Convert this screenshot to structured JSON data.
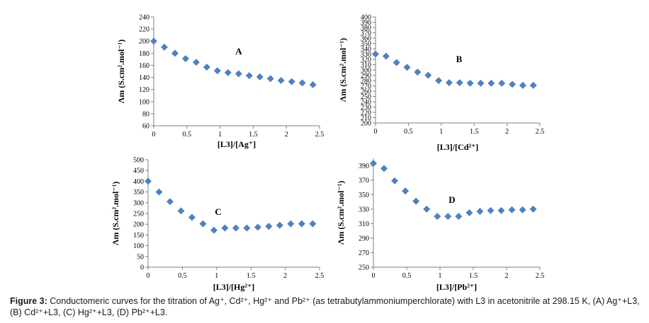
{
  "caption": {
    "figure_label": "Figure 3:",
    "text_line1": "Conductomeric curves for the titration of Ag⁺, Cd²⁺, Hg²⁺ and Pb²⁺ (as tetrabutylammoniumperchlorate) with L3 in acetonitrile at 298.15 K, (A) Ag⁺+L3,",
    "text_line2": "(B) Cd²⁺+L3,  (C) Hg²⁺+L3,  (D) Pb²⁺+L3."
  },
  "colors": {
    "marker": "#4F81BD",
    "axis": "#7f7f7f",
    "text": "#000000"
  },
  "chart_data": [
    {
      "id": "A",
      "type": "scatter",
      "panel_label": "A",
      "ylabel": "Λm (S.cm².mol⁻¹)",
      "xlabel": "[L3]/[Ag⁺]",
      "xlim": [
        0,
        2.5
      ],
      "ylim": [
        60,
        240
      ],
      "xticks": [
        0,
        0.5,
        1,
        1.5,
        2,
        2.5
      ],
      "xtick_labels": [
        "0",
        "0.5",
        "1",
        "1.5",
        "2",
        "2.5"
      ],
      "yticks": [
        60,
        80,
        100,
        120,
        140,
        160,
        180,
        200,
        220,
        240
      ],
      "x": [
        0,
        0.16,
        0.32,
        0.48,
        0.64,
        0.8,
        0.96,
        1.12,
        1.28,
        1.44,
        1.6,
        1.76,
        1.92,
        2.08,
        2.24,
        2.4
      ],
      "y": [
        200,
        190,
        180,
        171,
        165,
        157,
        151,
        148,
        146,
        143,
        141,
        138,
        135,
        133,
        131,
        128
      ]
    },
    {
      "id": "B",
      "type": "scatter",
      "panel_label": "B",
      "ylabel": "Λm (S.cm².mol⁻¹)",
      "xlabel": "[L3]/[Cd²⁺]",
      "xlim": [
        0,
        2.5
      ],
      "ylim": [
        200,
        400
      ],
      "xticks": [
        0,
        0.5,
        1,
        1.5,
        2,
        2.5
      ],
      "xtick_labels": [
        "0",
        "0.5",
        "1",
        "1.5",
        "2",
        "2.5"
      ],
      "yticks": [
        200,
        210,
        220,
        230,
        240,
        250,
        260,
        270,
        280,
        290,
        300,
        310,
        320,
        330,
        340,
        350,
        360,
        370,
        380,
        390,
        400
      ],
      "x": [
        0,
        0.16,
        0.32,
        0.48,
        0.64,
        0.8,
        0.96,
        1.12,
        1.28,
        1.44,
        1.6,
        1.76,
        1.92,
        2.08,
        2.24,
        2.4
      ],
      "y": [
        330,
        326,
        314,
        305,
        296,
        290,
        280,
        276,
        276,
        275,
        275,
        275,
        275,
        273,
        271,
        271
      ]
    },
    {
      "id": "C",
      "type": "scatter",
      "panel_label": "C",
      "ylabel": "Λm (S.cm².mol⁻¹)",
      "xlabel": "[L3]/[Hg²⁺]",
      "xlim": [
        0,
        2.5
      ],
      "ylim": [
        0,
        500
      ],
      "xticks": [
        0,
        0.5,
        1,
        1.5,
        2,
        2.5
      ],
      "xtick_labels": [
        "0",
        "0.5",
        "1",
        "1.5",
        "2",
        "2.5"
      ],
      "yticks": [
        0,
        50,
        100,
        150,
        200,
        250,
        300,
        350,
        400,
        450,
        500
      ],
      "x": [
        0,
        0.16,
        0.32,
        0.48,
        0.64,
        0.8,
        0.96,
        1.12,
        1.28,
        1.44,
        1.6,
        1.76,
        1.92,
        2.08,
        2.24,
        2.4
      ],
      "y": [
        400,
        350,
        305,
        262,
        232,
        202,
        172,
        182,
        182,
        182,
        186,
        190,
        195,
        202,
        202,
        202
      ]
    },
    {
      "id": "D",
      "type": "scatter",
      "panel_label": "D",
      "ylabel": "Λm (S.cm².mol⁻¹)",
      "xlabel": "[L3]/[Pb²⁺]",
      "xlim": [
        0,
        2.5
      ],
      "ylim": [
        250,
        400
      ],
      "xticks": [
        0,
        0.5,
        1,
        1.5,
        2,
        2.5
      ],
      "xtick_labels": [
        "0",
        "0.5",
        "1",
        "1.5",
        "2",
        "2.5"
      ],
      "yticks": [
        250,
        270,
        290,
        310,
        330,
        350,
        370,
        390
      ],
      "x": [
        0,
        0.16,
        0.32,
        0.48,
        0.64,
        0.8,
        0.96,
        1.12,
        1.28,
        1.44,
        1.6,
        1.76,
        1.92,
        2.08,
        2.24,
        2.4
      ],
      "y": [
        393,
        386,
        369,
        355,
        341,
        330,
        320,
        320,
        320,
        325,
        327,
        328,
        328,
        329,
        329,
        330
      ]
    }
  ]
}
